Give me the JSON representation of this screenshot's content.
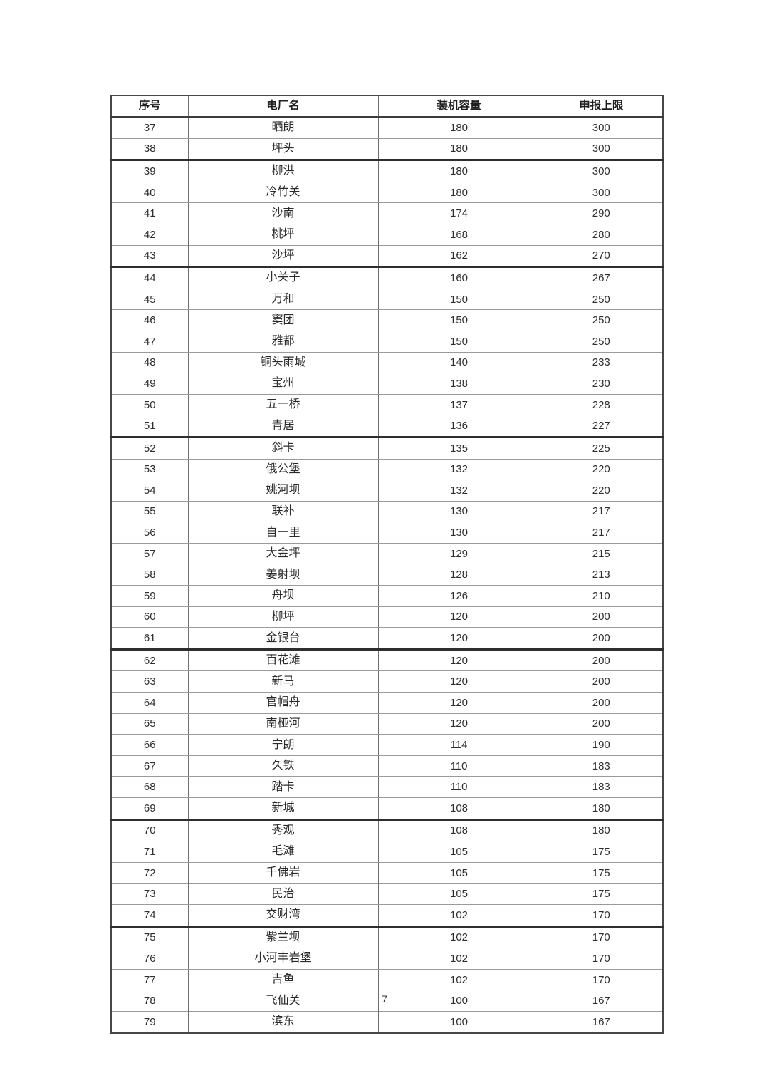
{
  "page": {
    "number": "7"
  },
  "table": {
    "columns": [
      "序号",
      "电厂名",
      "装机容量",
      "申报上限"
    ],
    "rows": [
      [
        37,
        "晒朗",
        180,
        300
      ],
      [
        38,
        "坪头",
        180,
        300
      ],
      [
        39,
        "柳洪",
        180,
        300
      ],
      [
        40,
        "冷竹关",
        180,
        300
      ],
      [
        41,
        "沙南",
        174,
        290
      ],
      [
        42,
        "桃坪",
        168,
        280
      ],
      [
        43,
        "沙坪",
        162,
        270
      ],
      [
        44,
        "小关子",
        160,
        267
      ],
      [
        45,
        "万和",
        150,
        250
      ],
      [
        46,
        "窦团",
        150,
        250
      ],
      [
        47,
        "雅都",
        150,
        250
      ],
      [
        48,
        "铜头雨城",
        140,
        233
      ],
      [
        49,
        "宝州",
        138,
        230
      ],
      [
        50,
        "五一桥",
        137,
        228
      ],
      [
        51,
        "青居",
        136,
        227
      ],
      [
        52,
        "斜卡",
        135,
        225
      ],
      [
        53,
        "俄公堡",
        132,
        220
      ],
      [
        54,
        "姚河坝",
        132,
        220
      ],
      [
        55,
        "联补",
        130,
        217
      ],
      [
        56,
        "自一里",
        130,
        217
      ],
      [
        57,
        "大金坪",
        129,
        215
      ],
      [
        58,
        "姜射坝",
        128,
        213
      ],
      [
        59,
        "舟坝",
        126,
        210
      ],
      [
        60,
        "柳坪",
        120,
        200
      ],
      [
        61,
        "金银台",
        120,
        200
      ],
      [
        62,
        "百花滩",
        120,
        200
      ],
      [
        63,
        "新马",
        120,
        200
      ],
      [
        64,
        "官帽舟",
        120,
        200
      ],
      [
        65,
        "南桠河",
        120,
        200
      ],
      [
        66,
        "宁朗",
        114,
        190
      ],
      [
        67,
        "久铁",
        110,
        183
      ],
      [
        68,
        "踏卡",
        110,
        183
      ],
      [
        69,
        "新城",
        108,
        180
      ],
      [
        70,
        "秀观",
        108,
        180
      ],
      [
        71,
        "毛滩",
        105,
        175
      ],
      [
        72,
        "千佛岩",
        105,
        175
      ],
      [
        73,
        "民治",
        105,
        175
      ],
      [
        74,
        "交财湾",
        102,
        170
      ],
      [
        75,
        "紫兰坝",
        102,
        170
      ],
      [
        76,
        "小河丰岩堡",
        102,
        170
      ],
      [
        77,
        "吉鱼",
        102,
        170
      ],
      [
        78,
        "飞仙关",
        100,
        167
      ],
      [
        79,
        "滨东",
        100,
        167
      ]
    ]
  }
}
